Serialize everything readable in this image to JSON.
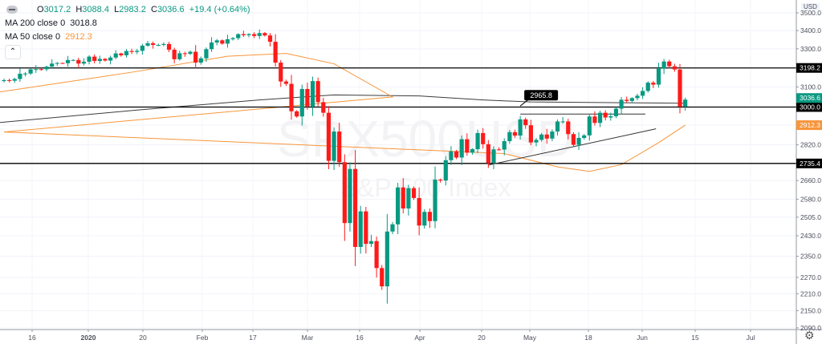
{
  "legend": {
    "open_label": "O",
    "open": "3017.2",
    "high_label": "H",
    "high": "3088.4",
    "low_label": "L",
    "low": "2983.2",
    "close_label": "C",
    "close": "3036.6",
    "change": "+19.4 (+0.64%)",
    "ma200_label": "MA 200 close 0",
    "ma200_value": "3018.8",
    "ma50_label": "MA 50 close 0",
    "ma50_value": "2912.3",
    "collapse_icon": "chevron-up-icon"
  },
  "currency": "USD",
  "watermark": {
    "symbol": "SPX500USD",
    "description": "S&P 500 Index"
  },
  "colors": {
    "up": "#089981",
    "down": "#ff1a1a",
    "ma50": "#f7953a",
    "ma200": "#3c3c3c",
    "line": "#000000"
  },
  "chart_data": {
    "type": "candlestick",
    "price_scale": "log",
    "ylim": [
      2090,
      3500
    ],
    "price_ticks": [
      "3500.0",
      "3400.0",
      "3300.0",
      "3100.0",
      "2820.0",
      "2660.0",
      "2580.0",
      "2505.0",
      "2430.0",
      "2350.0",
      "2270.0",
      "2210.0",
      "2150.0",
      "2090.0"
    ],
    "time_ticks": [
      "16",
      "2020",
      "20",
      "Feb",
      "17",
      "Mar",
      "16",
      "Apr",
      "20",
      "May",
      "18",
      "Jun",
      "15",
      "Jul"
    ],
    "candles_close": [
      [
        "2019-12-09",
        3135
      ],
      [
        "2019-12-10",
        3132
      ],
      [
        "2019-12-11",
        3141
      ],
      [
        "2019-12-12",
        3168
      ],
      [
        "2019-12-13",
        3169
      ],
      [
        "2019-12-16",
        3191
      ],
      [
        "2019-12-17",
        3192
      ],
      [
        "2019-12-18",
        3191
      ],
      [
        "2019-12-19",
        3205
      ],
      [
        "2019-12-20",
        3221
      ],
      [
        "2019-12-23",
        3224
      ],
      [
        "2019-12-24",
        3223
      ],
      [
        "2019-12-26",
        3240
      ],
      [
        "2019-12-27",
        3240
      ],
      [
        "2019-12-30",
        3221
      ],
      [
        "2019-12-31",
        3231
      ],
      [
        "2020-01-02",
        3258
      ],
      [
        "2020-01-03",
        3235
      ],
      [
        "2020-01-06",
        3246
      ],
      [
        "2020-01-07",
        3237
      ],
      [
        "2020-01-08",
        3253
      ],
      [
        "2020-01-09",
        3275
      ],
      [
        "2020-01-10",
        3265
      ],
      [
        "2020-01-13",
        3288
      ],
      [
        "2020-01-14",
        3283
      ],
      [
        "2020-01-15",
        3289
      ],
      [
        "2020-01-16",
        3317
      ],
      [
        "2020-01-17",
        3330
      ],
      [
        "2020-01-21",
        3321
      ],
      [
        "2020-01-22",
        3321
      ],
      [
        "2020-01-23",
        3326
      ],
      [
        "2020-01-24",
        3295
      ],
      [
        "2020-01-27",
        3244
      ],
      [
        "2020-01-28",
        3276
      ],
      [
        "2020-01-29",
        3273
      ],
      [
        "2020-01-30",
        3284
      ],
      [
        "2020-01-31",
        3226
      ],
      [
        "2020-02-03",
        3249
      ],
      [
        "2020-02-04",
        3298
      ],
      [
        "2020-02-05",
        3334
      ],
      [
        "2020-02-06",
        3346
      ],
      [
        "2020-02-07",
        3328
      ],
      [
        "2020-02-10",
        3352
      ],
      [
        "2020-02-11",
        3358
      ],
      [
        "2020-02-12",
        3380
      ],
      [
        "2020-02-13",
        3374
      ],
      [
        "2020-02-14",
        3380
      ],
      [
        "2020-02-18",
        3370
      ],
      [
        "2020-02-19",
        3386
      ],
      [
        "2020-02-20",
        3373
      ],
      [
        "2020-02-21",
        3338
      ],
      [
        "2020-02-24",
        3226
      ],
      [
        "2020-02-25",
        3128
      ],
      [
        "2020-02-26",
        3116
      ],
      [
        "2020-02-27",
        2979
      ],
      [
        "2020-02-28",
        2954
      ],
      [
        "2020-03-02",
        3090
      ],
      [
        "2020-03-03",
        3003
      ],
      [
        "2020-03-04",
        3130
      ],
      [
        "2020-03-05",
        3024
      ],
      [
        "2020-03-06",
        2972
      ],
      [
        "2020-03-09",
        2747
      ],
      [
        "2020-03-10",
        2882
      ],
      [
        "2020-03-11",
        2741
      ],
      [
        "2020-03-12",
        2481
      ],
      [
        "2020-03-13",
        2711
      ],
      [
        "2020-03-16",
        2386
      ],
      [
        "2020-03-17",
        2529
      ],
      [
        "2020-03-18",
        2398
      ],
      [
        "2020-03-19",
        2409
      ],
      [
        "2020-03-20",
        2305
      ],
      [
        "2020-03-23",
        2237
      ],
      [
        "2020-03-24",
        2447
      ],
      [
        "2020-03-25",
        2476
      ],
      [
        "2020-03-26",
        2630
      ],
      [
        "2020-03-27",
        2541
      ],
      [
        "2020-03-30",
        2627
      ],
      [
        "2020-03-31",
        2585
      ],
      [
        "2020-04-01",
        2471
      ],
      [
        "2020-04-02",
        2527
      ],
      [
        "2020-04-03",
        2489
      ],
      [
        "2020-04-06",
        2664
      ],
      [
        "2020-04-07",
        2660
      ],
      [
        "2020-04-08",
        2750
      ],
      [
        "2020-04-09",
        2790
      ],
      [
        "2020-04-13",
        2762
      ],
      [
        "2020-04-14",
        2846
      ],
      [
        "2020-04-15",
        2784
      ],
      [
        "2020-04-16",
        2800
      ],
      [
        "2020-04-17",
        2875
      ],
      [
        "2020-04-20",
        2823
      ],
      [
        "2020-04-21",
        2737
      ],
      [
        "2020-04-22",
        2799
      ],
      [
        "2020-04-23",
        2798
      ],
      [
        "2020-04-24",
        2837
      ],
      [
        "2020-04-27",
        2879
      ],
      [
        "2020-04-28",
        2863
      ],
      [
        "2020-04-29",
        2940
      ],
      [
        "2020-04-30",
        2912
      ],
      [
        "2020-05-01",
        2831
      ],
      [
        "2020-05-04",
        2843
      ],
      [
        "2020-05-05",
        2868
      ],
      [
        "2020-05-06",
        2849
      ],
      [
        "2020-05-07",
        2882
      ],
      [
        "2020-05-08",
        2930
      ],
      [
        "2020-05-11",
        2930
      ],
      [
        "2020-05-12",
        2870
      ],
      [
        "2020-05-13",
        2820
      ],
      [
        "2020-05-14",
        2852
      ],
      [
        "2020-05-15",
        2864
      ],
      [
        "2020-05-18",
        2954
      ],
      [
        "2020-05-19",
        2923
      ],
      [
        "2020-05-20",
        2972
      ],
      [
        "2020-05-21",
        2949
      ],
      [
        "2020-05-22",
        2955
      ],
      [
        "2020-05-26",
        2992
      ],
      [
        "2020-05-27",
        3036
      ],
      [
        "2020-05-28",
        3030
      ],
      [
        "2020-05-29",
        3044
      ],
      [
        "2020-06-01",
        3056
      ],
      [
        "2020-06-02",
        3080
      ],
      [
        "2020-06-03",
        3122
      ],
      [
        "2020-06-04",
        3112
      ],
      [
        "2020-06-05",
        3194
      ],
      [
        "2020-06-08",
        3232
      ],
      [
        "2020-06-09",
        3207
      ],
      [
        "2020-06-10",
        3190
      ],
      [
        "2020-06-11",
        3002
      ],
      [
        "2020-06-12",
        3036.6
      ]
    ],
    "ma200": [
      [
        "2019-12-09",
        2925
      ],
      [
        "2020-01-15",
        2985
      ],
      [
        "2020-02-19",
        3035
      ],
      [
        "2020-03-10",
        3060
      ],
      [
        "2020-04-01",
        3055
      ],
      [
        "2020-04-20",
        3035
      ],
      [
        "2020-05-01",
        3025
      ],
      [
        "2020-06-12",
        3018.8
      ]
    ],
    "ma50": [
      [
        "2019-12-09",
        3075
      ],
      [
        "2020-01-15",
        3180
      ],
      [
        "2020-02-10",
        3260
      ],
      [
        "2020-02-26",
        3275
      ],
      [
        "2020-03-10",
        3220
      ],
      [
        "2020-03-25",
        3050
      ],
      [
        "2020-04-10",
        2880
      ],
      [
        "2020-04-24",
        2780
      ],
      [
        "2020-05-08",
        2720
      ],
      [
        "2020-05-18",
        2700
      ],
      [
        "2020-05-27",
        2730
      ],
      [
        "2020-06-05",
        2830
      ],
      [
        "2020-06-12",
        2912.3
      ]
    ],
    "horizontal_levels": [
      {
        "price": 3198.2,
        "label": "3198.2"
      },
      {
        "price": 3000.0,
        "label": "3000.0"
      },
      {
        "price": 2735.4,
        "label": "2735.4"
      }
    ],
    "last_price_label": "3036.6",
    "ma50_price_label": "2912.3",
    "trendlines": [
      {
        "from": [
          "2020-04-29",
          2965.8
        ],
        "to": [
          "2020-06-01",
          2965.8
        ]
      },
      {
        "from": [
          "2020-04-21",
          2728
        ],
        "to": [
          "2020-06-03",
          2895
        ]
      }
    ],
    "annotation": {
      "label": "2965.8",
      "date": "2020-04-29",
      "price": 2965.8
    }
  }
}
